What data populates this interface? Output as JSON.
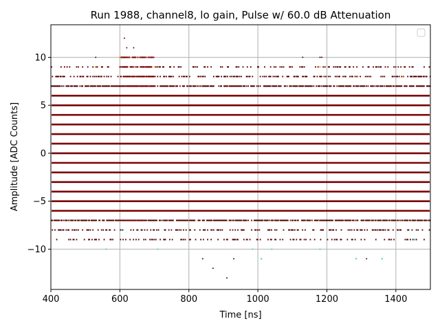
{
  "chart_data": {
    "type": "scatter",
    "title": "Run 1988, channel8, lo gain, Pulse w/ 60.0 dB Attenuation",
    "xlabel": "Time [ns]",
    "ylabel": "Amplitude [ADC Counts]",
    "xlim": [
      400,
      1500
    ],
    "ylim": [
      -14.2,
      13.4
    ],
    "xticks": [
      400,
      600,
      800,
      1000,
      1200,
      1400
    ],
    "yticks": [
      -10,
      -5,
      0,
      5,
      10
    ],
    "ytick_labels": [
      "−10",
      "−5",
      "0",
      "5",
      "10"
    ],
    "grid": true,
    "legend": {
      "placement": "top-right",
      "entries": []
    },
    "colors": {
      "dense": "#7a0000",
      "sparse": "#550000",
      "accent_cyan": "#38d8e8",
      "accent_orange": "#f0a000",
      "grid": "#b0b0b0"
    },
    "dense_levels": [
      -9,
      -8,
      -7,
      -6,
      -5,
      -4,
      -3,
      -2,
      -1,
      0,
      1,
      2,
      3,
      4,
      5,
      6,
      7,
      8,
      9
    ],
    "solid_levels": [
      -6,
      -5,
      -4,
      -3,
      -2,
      -1,
      0,
      1,
      2,
      3,
      4,
      5,
      6
    ],
    "level_density": {
      "-9": 0.25,
      "-8": 0.35,
      "-7": 0.8,
      "6": 0.85,
      "7": 0.75,
      "8": 0.4,
      "9": 0.25
    },
    "bumps": [
      {
        "x_start": 600,
        "x_end": 700,
        "levels": [
          7,
          8,
          9,
          10
        ]
      },
      {
        "x_start": 600,
        "x_end": 680,
        "levels": [
          -6,
          -7
        ]
      }
    ],
    "outliers": [
      {
        "x": 613,
        "y": 12
      },
      {
        "x": 620,
        "y": 11
      },
      {
        "x": 640,
        "y": 11
      },
      {
        "x": 530,
        "y": 10
      },
      {
        "x": 615,
        "y": 10
      },
      {
        "x": 1130,
        "y": 10
      },
      {
        "x": 1180,
        "y": 10
      },
      {
        "x": 1185,
        "y": 10
      },
      {
        "x": 840,
        "y": -11
      },
      {
        "x": 870,
        "y": -12
      },
      {
        "x": 910,
        "y": -13
      },
      {
        "x": 930,
        "y": -11
      },
      {
        "x": 1010,
        "y": -11
      },
      {
        "x": 1285,
        "y": -11
      },
      {
        "x": 1315,
        "y": -11
      },
      {
        "x": 1360,
        "y": -11
      }
    ],
    "cyan_points": [
      {
        "x": 560,
        "y": -10
      },
      {
        "x": 610,
        "y": -8
      },
      {
        "x": 710,
        "y": -10
      },
      {
        "x": 985,
        "y": -10
      },
      {
        "x": 1010,
        "y": -11
      },
      {
        "x": 1180,
        "y": -10
      },
      {
        "x": 1285,
        "y": -11
      },
      {
        "x": 1360,
        "y": -11
      },
      {
        "x": 1455,
        "y": -9
      },
      {
        "x": 1040,
        "y": -10
      }
    ],
    "orange_points": [
      {
        "x": 530,
        "y": 9
      },
      {
        "x": 600,
        "y": 10
      },
      {
        "x": 700,
        "y": 9
      },
      {
        "x": 1180,
        "y": 9
      },
      {
        "x": 1290,
        "y": 8
      },
      {
        "x": 1420,
        "y": 8
      }
    ]
  }
}
